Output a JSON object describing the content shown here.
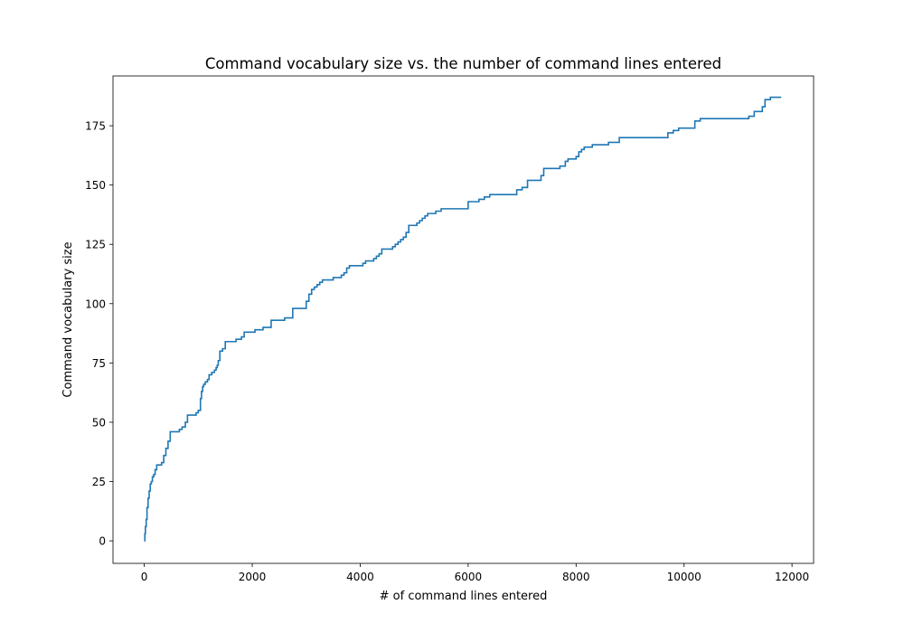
{
  "chart_data": {
    "type": "line",
    "title": "Command vocabulary size vs. the number of command lines entered",
    "xlabel": "# of command lines entered",
    "ylabel": "Command vocabulary size",
    "xlim": [
      -580,
      12400
    ],
    "ylim": [
      -9.5,
      196
    ],
    "x_ticks": [
      0,
      2000,
      4000,
      6000,
      8000,
      10000,
      12000
    ],
    "y_ticks": [
      0,
      25,
      50,
      75,
      100,
      125,
      150,
      175
    ],
    "grid": false,
    "line_style": "steps-post",
    "line_color": "#1f77b4",
    "series": [
      {
        "x": [
          0,
          10,
          20,
          35,
          50,
          70,
          90,
          110,
          130,
          150,
          175,
          200,
          230,
          260,
          290,
          320,
          360,
          400,
          440,
          480,
          520,
          560,
          600,
          650,
          700,
          760,
          800,
          850,
          900,
          960,
          1000,
          1040,
          1060,
          1080,
          1100,
          1130,
          1170,
          1200,
          1250,
          1300,
          1330,
          1350,
          1370,
          1400,
          1450,
          1500,
          1550,
          1600,
          1700,
          1760,
          1800,
          1850,
          1950,
          2050,
          2200,
          2280,
          2350,
          2400,
          2500,
          2600,
          2700,
          2750,
          2950,
          3000,
          3050,
          3100,
          3150,
          3200,
          3250,
          3300,
          3500,
          3600,
          3650,
          3700,
          3750,
          3800,
          4000,
          4050,
          4100,
          4200,
          4250,
          4300,
          4350,
          4400,
          4450,
          4600,
          4650,
          4700,
          4750,
          4800,
          4850,
          4900,
          5000,
          5050,
          5100,
          5150,
          5200,
          5250,
          5300,
          5400,
          5500,
          5600,
          6000,
          6200,
          6300,
          6400,
          6500,
          6900,
          7000,
          7100,
          7200,
          7350,
          7400,
          7500,
          7700,
          7800,
          7850,
          7950,
          8000,
          8050,
          8100,
          8150,
          8200,
          8300,
          8400,
          8600,
          8800,
          9600,
          9700,
          9800,
          9900,
          10100,
          10200,
          10300,
          11100,
          11200,
          11300,
          11400,
          11450,
          11500,
          11600,
          11800
        ],
        "y": [
          0,
          3,
          6,
          9,
          14,
          18,
          21,
          24,
          25,
          27,
          28,
          30,
          32,
          32,
          32,
          33,
          36,
          39,
          42,
          46,
          46,
          46,
          46,
          47,
          48,
          50,
          53,
          53,
          53,
          54,
          55,
          60,
          63,
          65,
          66,
          67,
          68,
          70,
          71,
          72,
          73,
          74,
          76,
          80,
          81,
          84,
          84,
          84,
          85,
          85,
          86,
          88,
          88,
          89,
          90,
          90,
          93,
          93,
          93,
          94,
          94,
          98,
          98,
          101,
          104,
          106,
          107,
          108,
          109,
          110,
          111,
          111,
          112,
          113,
          115,
          116,
          116,
          117,
          118,
          118,
          119,
          120,
          121,
          123,
          123,
          124,
          125,
          126,
          127,
          128,
          130,
          133,
          133,
          134,
          135,
          136,
          137,
          138,
          138,
          139,
          140,
          140,
          143,
          144,
          145,
          146,
          146,
          148,
          149,
          152,
          152,
          154,
          157,
          157,
          158,
          160,
          161,
          161,
          162,
          164,
          165,
          166,
          166,
          167,
          167,
          168,
          170,
          170,
          172,
          173,
          174,
          174,
          177,
          178,
          178,
          179,
          181,
          181,
          183,
          186,
          187,
          187
        ]
      }
    ]
  }
}
